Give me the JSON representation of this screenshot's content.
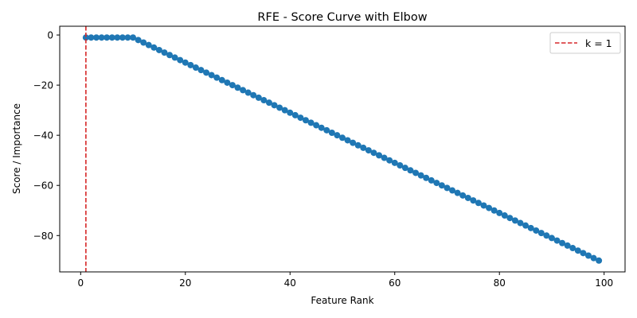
{
  "chart_data": {
    "type": "scatter",
    "title": "RFE - Score Curve with Elbow",
    "xlabel": "Feature Rank",
    "ylabel": "Score / Importance",
    "xlim": [
      -4,
      104
    ],
    "ylim": [
      -94.5,
      3.5
    ],
    "xticks": [
      0,
      20,
      40,
      60,
      80,
      100
    ],
    "xtick_labels": [
      "0",
      "20",
      "40",
      "60",
      "80",
      "100"
    ],
    "yticks": [
      0,
      -20,
      -40,
      -60,
      -80
    ],
    "ytick_labels": [
      "0",
      "−20",
      "−40",
      "−60",
      "−80"
    ],
    "grid": false,
    "legend_position": "top-right",
    "series": [
      {
        "style": "line-markers",
        "color": "#1f77b4",
        "x_start": 1,
        "x_end": 99,
        "x_step": 1,
        "y": [
          -1,
          -1,
          -1,
          -1,
          -1,
          -1,
          -1,
          -1,
          -1,
          -1,
          -2,
          -3,
          -4,
          -5,
          -6,
          -7,
          -8,
          -9,
          -10,
          -11,
          -12,
          -13,
          -14,
          -15,
          -16,
          -17,
          -18,
          -19,
          -20,
          -21,
          -22,
          -23,
          -24,
          -25,
          -26,
          -27,
          -28,
          -29,
          -30,
          -31,
          -32,
          -33,
          -34,
          -35,
          -36,
          -37,
          -38,
          -39,
          -40,
          -41,
          -42,
          -43,
          -44,
          -45,
          -46,
          -47,
          -48,
          -49,
          -50,
          -51,
          -52,
          -53,
          -54,
          -55,
          -56,
          -57,
          -58,
          -59,
          -60,
          -61,
          -62,
          -63,
          -64,
          -65,
          -66,
          -67,
          -68,
          -69,
          -70,
          -71,
          -72,
          -73,
          -74,
          -75,
          -76,
          -77,
          -78,
          -79,
          -80,
          -81,
          -82,
          -83,
          -84,
          -85,
          -86,
          -87,
          -88,
          -89,
          -90
        ]
      }
    ],
    "annotations": [
      {
        "type": "vline",
        "x": 1,
        "color": "#d62728",
        "linestyle": "dashed",
        "label": "k = 1"
      }
    ]
  }
}
